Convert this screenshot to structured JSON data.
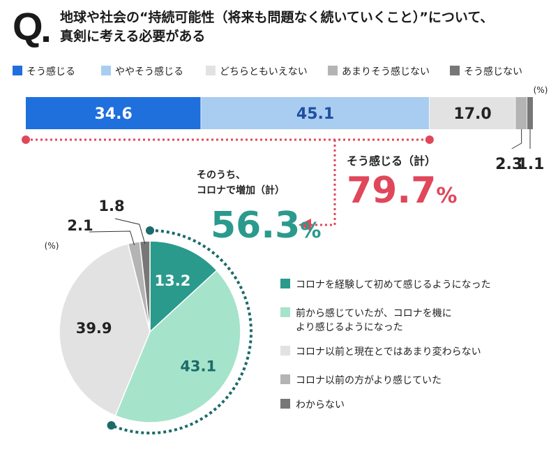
{
  "question": {
    "letter": "Q",
    "line1": "地球や社会の“持続可能性（将来も問題なく続いていくこと）”について、",
    "line2": "真剣に考える必要がある"
  },
  "unit_label": "(%)",
  "colors": {
    "blue": "#1f6fdc",
    "light_blue": "#a9cdf0",
    "light_gray": "#e2e2e2",
    "mid_gray": "#b4b4b4",
    "dark_gray": "#777777",
    "teal": "#2a9a8c",
    "mint": "#a6e3cb",
    "dotted_teal": "#1c6b6a",
    "red": "#e0475a",
    "bar_text_blue": "#1f4fa0"
  },
  "chart_data": [
    {
      "type": "bar",
      "orientation": "horizontal-stacked",
      "categories": [
        "そう感じる",
        "ややそう感じる",
        "どちらともいえない",
        "あまりそう感じない",
        "そう感じない"
      ],
      "values": [
        34.6,
        45.1,
        17.0,
        2.3,
        1.1
      ],
      "value_labels": [
        "34.6",
        "45.1",
        "17.0",
        "2.3",
        "1.1"
      ],
      "legend": [
        "そう感じる",
        "ややそう感じる",
        "どちらともいえない",
        "あまりそう感じない",
        "そう感じない"
      ],
      "unit": "(%)",
      "annotation": {
        "label": "そう感じる（計）",
        "value": "79.7",
        "suffix": "%"
      }
    },
    {
      "type": "pie",
      "categories": [
        "コロナを経験して初めて感じるようになった",
        "前から感じていたが、コロナを機により感じるようになった",
        "コロナ以前と現在とではあまり変わらない",
        "コロナ以前の方がより感じていた",
        "わからない"
      ],
      "values": [
        13.2,
        43.1,
        39.9,
        2.1,
        1.8
      ],
      "value_labels": [
        "13.2",
        "43.1",
        "39.9",
        "2.1",
        "1.8"
      ],
      "legend": [
        {
          "lines": [
            "コロナを経験して初めて感じるようになった"
          ]
        },
        {
          "lines": [
            "前から感じていたが、コロナを機に",
            "より感じるようになった"
          ]
        },
        {
          "lines": [
            "コロナ以前と現在とではあまり変わらない"
          ]
        },
        {
          "lines": [
            "コロナ以前の方がより感じていた"
          ]
        },
        {
          "lines": [
            "わからない"
          ]
        }
      ],
      "unit": "(%)",
      "annotation": {
        "label_line1": "そのうち、",
        "label_line2": "コロナで増加（計）",
        "value": "56.3",
        "suffix": "%"
      }
    }
  ]
}
